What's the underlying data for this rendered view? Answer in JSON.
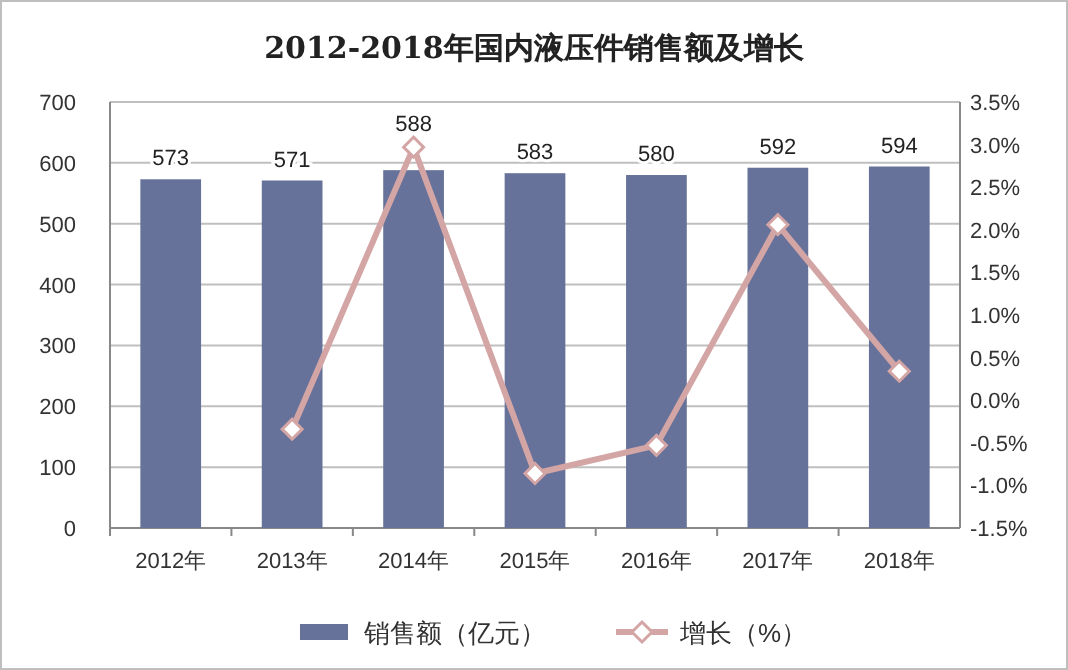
{
  "chart_data": {
    "type": "bar",
    "title": "2012-2018年国内液压件销售额及增长",
    "categories": [
      "2012年",
      "2013年",
      "2014年",
      "2015年",
      "2016年",
      "2017年",
      "2018年"
    ],
    "series": [
      {
        "name": "销售额（亿元）",
        "color": "#67729a",
        "values": [
          573,
          571,
          588,
          583,
          580,
          592,
          594
        ],
        "value_labels": [
          "573",
          "571",
          "588",
          "583",
          "580",
          "592",
          "594"
        ]
      },
      {
        "name": "增长（%）",
        "type": "line",
        "axis": "y2",
        "color": "#d4a5a5",
        "marker": "diamond",
        "values": [
          null,
          -0.34,
          2.97,
          -0.86,
          -0.53,
          2.06,
          0.34
        ]
      }
    ],
    "ylim": [
      0,
      700
    ],
    "yticks": [
      0,
      100,
      200,
      300,
      400,
      500,
      600,
      700
    ],
    "y2lim": [
      -1.5,
      3.5
    ],
    "y2ticks": [
      {
        "value": -1.5,
        "label": "-1.5%"
      },
      {
        "value": -1.0,
        "label": "-1.0%"
      },
      {
        "value": -0.5,
        "label": "-0.5%"
      },
      {
        "value": 0,
        "label": "0.0%"
      },
      {
        "value": 0.5,
        "label": "0.5%"
      },
      {
        "value": 1.0,
        "label": "1.0%"
      },
      {
        "value": 1.5,
        "label": "1.5%"
      },
      {
        "value": 2.0,
        "label": "2.0%"
      },
      {
        "value": 2.5,
        "label": "2.5%"
      },
      {
        "value": 3.0,
        "label": "3.0%"
      },
      {
        "value": 3.5,
        "label": "3.5%"
      }
    ],
    "grid": "y",
    "legend": "bottom"
  }
}
